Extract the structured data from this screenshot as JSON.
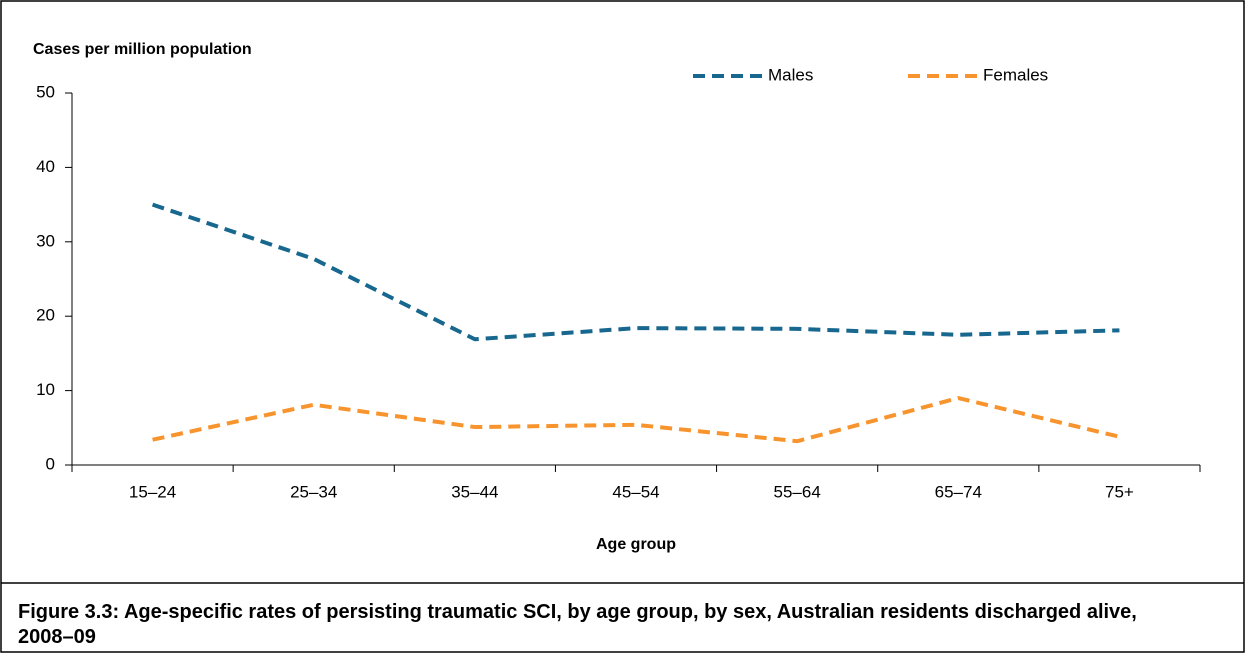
{
  "chart_data": {
    "type": "line",
    "y_label": "Cases per million population",
    "x_label": "Age group",
    "caption": "Figure 3.3: Age-specific rates of persisting traumatic SCI, by age group, by sex, Australian residents discharged alive, 2008–09",
    "categories": [
      "15–24",
      "25–34",
      "35–44",
      "45–54",
      "55–64",
      "65–74",
      "75+"
    ],
    "series": [
      {
        "name": "Males",
        "color": "#17678f",
        "values": [
          35,
          27.7,
          16.9,
          18.4,
          18.3,
          17.5,
          18.1
        ]
      },
      {
        "name": "Females",
        "color": "#f7942e",
        "values": [
          3.4,
          8.1,
          5.1,
          5.4,
          3.2,
          9.0,
          3.8
        ]
      }
    ],
    "ylim": [
      0,
      50
    ],
    "yticks": [
      0,
      10,
      20,
      30,
      40,
      50
    ],
    "grid": false,
    "dashed": true
  }
}
